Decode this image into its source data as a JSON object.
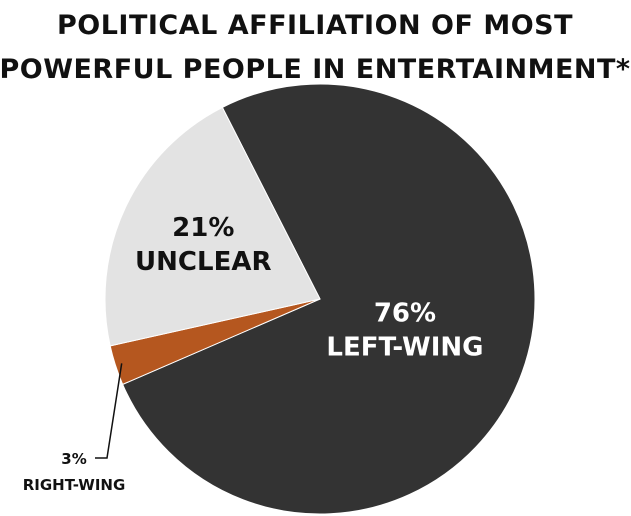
{
  "chart_data": {
    "type": "pie",
    "title_lines": [
      "POLITICAL AFFILIATION OF MOST",
      "POWERFUL PEOPLE IN ENTERTAINMENT*"
    ],
    "slices": [
      {
        "category": "LEFT-WING",
        "value": 76,
        "value_label": "76%",
        "color": "#333333",
        "label_color": "#ffffff"
      },
      {
        "category": "RIGHT-WING",
        "value": 3,
        "value_label": "3%",
        "color": "#b5571f",
        "label_color": "#111111"
      },
      {
        "category": "UNCLEAR",
        "value": 21,
        "value_label": "21%",
        "color": "#e3e3e3",
        "label_color": "#111111"
      }
    ],
    "start_angle_deg": 243,
    "direction": "clockwise",
    "unit": "%"
  }
}
